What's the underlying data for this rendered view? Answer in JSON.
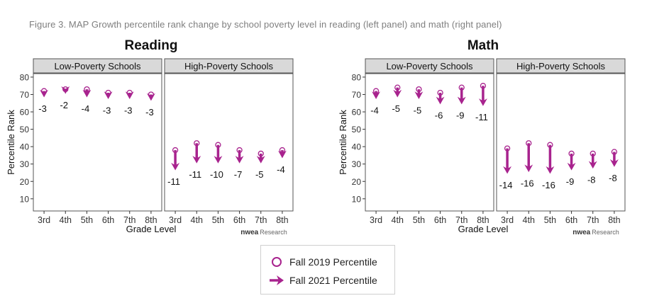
{
  "caption": "Figure 3. MAP Growth percentile rank change by school poverty level in reading (left panel) and math (right panel)",
  "colors": {
    "accent": "#a8238e",
    "strip_fill": "#d9d9d9",
    "axis": "#333333"
  },
  "legend": {
    "fall2019_label": "Fall 2019 Percentile",
    "fall2021_label": "Fall 2021 Percentile",
    "fall2019_icon": "open-circle-icon",
    "fall2021_icon": "arrow-right-icon"
  },
  "chart_data": [
    {
      "type": "arrow-dot",
      "title": "Reading",
      "ylabel": "Percentile Rank",
      "xlabel": "Grade Level",
      "ylim": [
        2,
        83
      ],
      "yticks": [
        10,
        20,
        30,
        40,
        50,
        60,
        70,
        80
      ],
      "categories": [
        "3rd",
        "4th",
        "5th",
        "6th",
        "7th",
        "8th"
      ],
      "watermark": {
        "brand": "nwea",
        "suffix": "Research"
      },
      "panels": [
        {
          "name": "Low-Poverty Schools",
          "series": [
            {
              "name": "Fall 2019 Percentile",
              "values": [
                72,
                73,
                73,
                71,
                71,
                70
              ]
            },
            {
              "name": "Fall 2021 Percentile",
              "values": [
                69,
                71,
                69,
                68,
                68,
                67
              ]
            }
          ],
          "change_labels": [
            "-3",
            "-2",
            "-4",
            "-3",
            "-3",
            "-3"
          ]
        },
        {
          "name": "High-Poverty Schools",
          "series": [
            {
              "name": "Fall 2019 Percentile",
              "values": [
                38,
                42,
                41,
                38,
                36,
                38
              ]
            },
            {
              "name": "Fall 2021 Percentile",
              "values": [
                27,
                31,
                31,
                31,
                31,
                34
              ]
            }
          ],
          "change_labels": [
            "-11",
            "-11",
            "-10",
            "-7",
            "-5",
            "-4"
          ]
        }
      ]
    },
    {
      "type": "arrow-dot",
      "title": "Math",
      "ylabel": "Percentile Rank",
      "xlabel": "Grade Level",
      "ylim": [
        2,
        83
      ],
      "yticks": [
        10,
        20,
        30,
        40,
        50,
        60,
        70,
        80
      ],
      "categories": [
        "3rd",
        "4th",
        "5th",
        "6th",
        "7th",
        "8th"
      ],
      "watermark": {
        "brand": "nwea",
        "suffix": "Research"
      },
      "panels": [
        {
          "name": "Low-Poverty Schools",
          "series": [
            {
              "name": "Fall 2019 Percentile",
              "values": [
                72,
                74,
                73,
                71,
                74,
                75
              ]
            },
            {
              "name": "Fall 2021 Percentile",
              "values": [
                68,
                69,
                68,
                65,
                65,
                64
              ]
            }
          ],
          "change_labels": [
            "-4",
            "-5",
            "-5",
            "-6",
            "-9",
            "-11"
          ]
        },
        {
          "name": "High-Poverty Schools",
          "series": [
            {
              "name": "Fall 2019 Percentile",
              "values": [
                39,
                42,
                41,
                36,
                36,
                37
              ]
            },
            {
              "name": "Fall 2021 Percentile",
              "values": [
                25,
                26,
                25,
                27,
                28,
                29
              ]
            }
          ],
          "change_labels": [
            "-14",
            "-16",
            "-16",
            "-9",
            "-8",
            "-8"
          ]
        }
      ]
    }
  ]
}
